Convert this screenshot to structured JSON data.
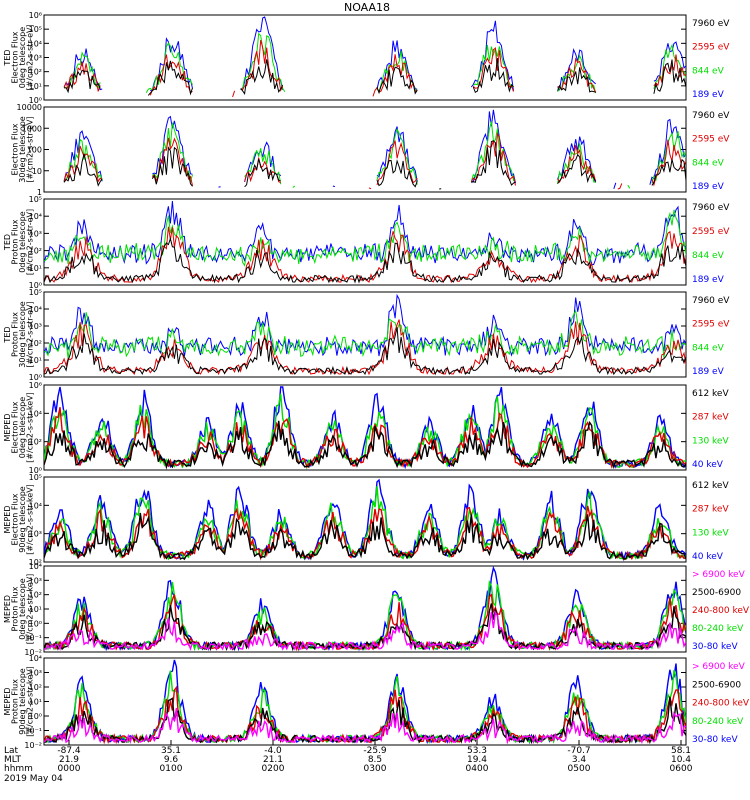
{
  "chart_data": {
    "type": "line",
    "title": "NOAA18",
    "date_label": "2019 May 04",
    "colors": {
      "black": "#000000",
      "red": "#e00000",
      "green": "#00e000",
      "blue": "#0000ff",
      "magenta": "#ff00ff"
    },
    "x_axis": {
      "row_labels": [
        "Lat",
        "MLT",
        "hhmm"
      ],
      "ticks": [
        {
          "lat": "-87.4",
          "mlt": "21.9",
          "hhmm": "0000"
        },
        {
          "lat": "35.1",
          "mlt": "9.6",
          "hhmm": "0100"
        },
        {
          "lat": "-4.0",
          "mlt": "21.1",
          "hhmm": "0200"
        },
        {
          "lat": "-25.9",
          "mlt": "8.5",
          "hhmm": "0300"
        },
        {
          "lat": "53.3",
          "mlt": "19.4",
          "hhmm": "0400"
        },
        {
          "lat": "-70.7",
          "mlt": "3.4",
          "hhmm": "0500"
        },
        {
          "lat": "58.1",
          "mlt": "10.4",
          "hhmm": "0600"
        }
      ]
    },
    "panels": [
      {
        "ylabel": [
          "TED",
          "Electron Flux",
          "0deg telescope",
          "[#/cm2-s-str-eV]"
        ],
        "yticks": [
          "10⁰",
          "10¹",
          "10²",
          "10³",
          "10⁴",
          "10⁵",
          "10⁶"
        ],
        "legend": [
          {
            "label": "7960 eV",
            "color": "black"
          },
          {
            "label": "2595 eV",
            "color": "red"
          },
          {
            "label": "844 eV",
            "color": "green"
          },
          {
            "label": "189 eV",
            "color": "blue"
          }
        ]
      },
      {
        "ylabel": [
          "Electron Flux",
          "30deg telescope",
          "[#/cm2-s-str-eV]"
        ],
        "yticks": [
          "1",
          "10",
          "100",
          "1000",
          "10000"
        ],
        "legend": [
          {
            "label": "7960 eV",
            "color": "black"
          },
          {
            "label": "2595 eV",
            "color": "red"
          },
          {
            "label": "844 eV",
            "color": "green"
          },
          {
            "label": "189 eV",
            "color": "blue"
          }
        ]
      },
      {
        "ylabel": [
          "TED",
          "Proton Flux",
          "0deg telescope",
          "[#/cm2-s-str-eV]"
        ],
        "yticks": [
          "10⁰",
          "10¹",
          "10²",
          "10³",
          "10⁴",
          "10⁵"
        ],
        "legend": [
          {
            "label": "7960 eV",
            "color": "black"
          },
          {
            "label": "2595 eV",
            "color": "red"
          },
          {
            "label": "844 eV",
            "color": "green"
          },
          {
            "label": "189 eV",
            "color": "blue"
          }
        ]
      },
      {
        "ylabel": [
          "TED",
          "Proton Flux",
          "30deg telescope",
          "[#/cm2-s-str-eV]"
        ],
        "yticks": [
          "10⁰",
          "10¹",
          "10²",
          "10³",
          "10⁴",
          "10⁵"
        ],
        "legend": [
          {
            "label": "7960 eV",
            "color": "black"
          },
          {
            "label": "2595 eV",
            "color": "red"
          },
          {
            "label": "844 eV",
            "color": "green"
          },
          {
            "label": "189 eV",
            "color": "blue"
          }
        ]
      },
      {
        "ylabel": [
          "MEPED",
          "Electron Flux",
          "0deg telescope",
          "[#/cm2-s-str-keV]"
        ],
        "yticks": [
          "10⁰",
          "10²",
          "10⁴",
          "10⁶"
        ],
        "legend": [
          {
            "label": "612 keV",
            "color": "black"
          },
          {
            "label": "287 keV",
            "color": "red"
          },
          {
            "label": "130 keV",
            "color": "green"
          },
          {
            "label": "40 keV",
            "color": "blue"
          }
        ]
      },
      {
        "ylabel": [
          "MEPED",
          "Electron Flux",
          "90deg telescope",
          "[#/cm2-s-str-keV]"
        ],
        "yticks": [
          "10²",
          "10³",
          "10⁴",
          "10⁵"
        ],
        "legend": [
          {
            "label": "612 keV",
            "color": "black"
          },
          {
            "label": "287 keV",
            "color": "red"
          },
          {
            "label": "130 keV",
            "color": "green"
          },
          {
            "label": "40 keV",
            "color": "blue"
          }
        ]
      },
      {
        "ylabel": [
          "MEPED",
          "Proton Flux",
          "0deg telescope",
          "[#/cm2-s-str-keV]"
        ],
        "yticks": [
          "10⁻²",
          "10⁻¹",
          "10⁰",
          "10¹",
          "10²",
          "10³",
          "10⁴"
        ],
        "legend": [
          {
            "label": "> 6900 keV",
            "color": "magenta"
          },
          {
            "label": "2500-6900",
            "color": "black"
          },
          {
            "label": "240-800 keV",
            "color": "red"
          },
          {
            "label": "80-240 keV",
            "color": "green"
          },
          {
            "label": "30-80 keV",
            "color": "blue"
          }
        ]
      },
      {
        "ylabel": [
          "MEPED",
          "Proton Flux",
          "90deg telescope",
          "[#/cm2-s-str-keV]"
        ],
        "yticks": [
          "10⁻²",
          "10⁻¹",
          "10⁰",
          "10¹",
          "10²",
          "10³",
          "10⁴"
        ],
        "legend": [
          {
            "label": "> 6900 keV",
            "color": "magenta"
          },
          {
            "label": "2500-6900",
            "color": "black"
          },
          {
            "label": "240-800 keV",
            "color": "red"
          },
          {
            "label": "80-240 keV",
            "color": "green"
          },
          {
            "label": "30-80 keV",
            "color": "blue"
          }
        ]
      }
    ]
  }
}
